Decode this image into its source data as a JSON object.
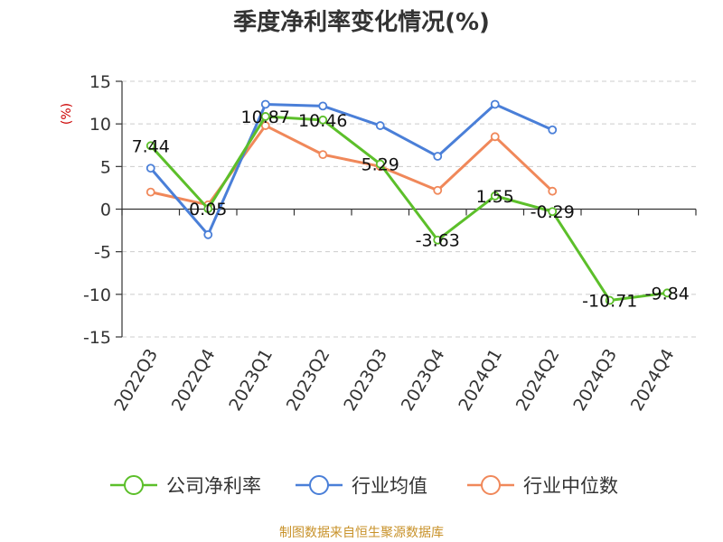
{
  "chart_data": {
    "type": "line",
    "title": "季度净利率变化情况(%)",
    "ylabel": "(%)",
    "ylim": [
      -15,
      15
    ],
    "yticks": [
      15,
      10,
      5,
      0,
      -5,
      -10,
      -15
    ],
    "categories": [
      "2022Q3",
      "2022Q4",
      "2023Q1",
      "2023Q2",
      "2023Q3",
      "2023Q4",
      "2024Q1",
      "2024Q2",
      "2024Q3",
      "2024Q4"
    ],
    "series": [
      {
        "name": "公司净利率",
        "color": "#5cbf2a",
        "values": [
          7.44,
          0.05,
          10.87,
          10.46,
          5.29,
          -3.63,
          1.55,
          -0.29,
          -10.71,
          -9.84
        ],
        "labels": [
          "7.44",
          "0.05",
          "10.87",
          "10.46",
          "5.29",
          "-3.63",
          "1.55",
          "-0.29",
          "-10.71",
          "-9.84"
        ]
      },
      {
        "name": "行业均值",
        "color": "#4a7fd8",
        "values": [
          4.8,
          -3.0,
          12.3,
          12.1,
          9.8,
          6.2,
          12.3,
          9.3,
          null,
          null
        ]
      },
      {
        "name": "行业中位数",
        "color": "#f0885a",
        "values": [
          2.0,
          0.5,
          9.8,
          6.4,
          5.0,
          2.2,
          8.5,
          2.1,
          null,
          null
        ]
      }
    ],
    "grid": true,
    "legend": "bottom"
  },
  "source": "制图数据来自恒生聚源数据库"
}
